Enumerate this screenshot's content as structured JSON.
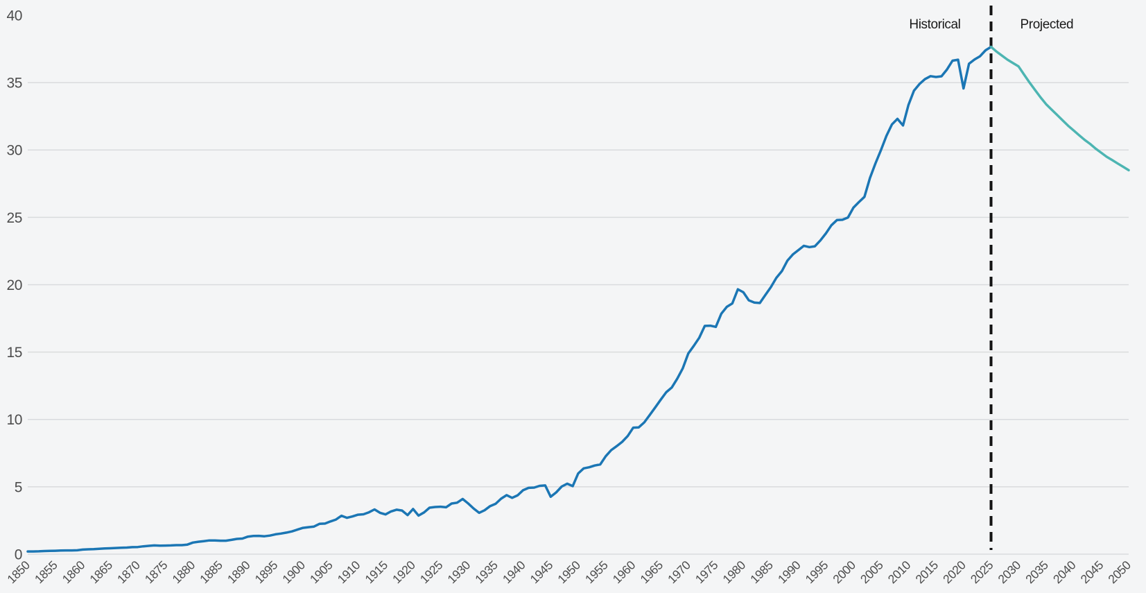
{
  "chart_data": {
    "type": "line",
    "title": "",
    "xlabel": "",
    "ylabel": "",
    "x_axis": {
      "range": [
        1850,
        2050
      ],
      "ticks": [
        1850,
        1855,
        1860,
        1865,
        1870,
        1875,
        1880,
        1885,
        1890,
        1895,
        1900,
        1905,
        1910,
        1915,
        1920,
        1925,
        1930,
        1935,
        1940,
        1945,
        1950,
        1955,
        1960,
        1965,
        1970,
        1975,
        1980,
        1985,
        1990,
        1995,
        2000,
        2005,
        2010,
        2015,
        2020,
        2025,
        2030,
        2035,
        2040,
        2045,
        2050
      ],
      "tick_rotation_deg": -45
    },
    "y_axis": {
      "range": [
        0,
        40
      ],
      "ticks": [
        0,
        5,
        10,
        15,
        20,
        25,
        30,
        35,
        40
      ],
      "gridline_max": 35,
      "grid": true
    },
    "series": [
      {
        "name": "Historical",
        "color": "#1b76b4",
        "x_start": 1850,
        "x_step": 1,
        "values": [
          0.2,
          0.2,
          0.21,
          0.23,
          0.24,
          0.25,
          0.27,
          0.28,
          0.28,
          0.29,
          0.34,
          0.36,
          0.37,
          0.4,
          0.42,
          0.44,
          0.46,
          0.48,
          0.49,
          0.52,
          0.53,
          0.58,
          0.62,
          0.65,
          0.63,
          0.64,
          0.65,
          0.67,
          0.67,
          0.71,
          0.86,
          0.92,
          0.97,
          1.02,
          1.02,
          1.0,
          1.0,
          1.06,
          1.13,
          1.16,
          1.3,
          1.35,
          1.36,
          1.33,
          1.38,
          1.47,
          1.53,
          1.6,
          1.69,
          1.82,
          1.95,
          2.0,
          2.05,
          2.25,
          2.27,
          2.43,
          2.57,
          2.85,
          2.7,
          2.8,
          2.93,
          2.96,
          3.11,
          3.32,
          3.07,
          2.95,
          3.17,
          3.3,
          3.24,
          2.9,
          3.35,
          2.86,
          3.1,
          3.45,
          3.5,
          3.52,
          3.48,
          3.76,
          3.82,
          4.1,
          3.77,
          3.39,
          3.07,
          3.26,
          3.57,
          3.74,
          4.12,
          4.38,
          4.18,
          4.37,
          4.75,
          4.92,
          4.94,
          5.07,
          5.1,
          4.26,
          4.58,
          5.02,
          5.23,
          5.05,
          5.99,
          6.37,
          6.45,
          6.58,
          6.66,
          7.27,
          7.72,
          8.02,
          8.34,
          8.77,
          9.39,
          9.41,
          9.78,
          10.33,
          10.9,
          11.47,
          12.02,
          12.37,
          13.03,
          13.8,
          14.9,
          15.46,
          16.07,
          16.94,
          16.96,
          16.87,
          17.85,
          18.36,
          18.61,
          19.66,
          19.44,
          18.84,
          18.67,
          18.64,
          19.24,
          19.82,
          20.51,
          21.01,
          21.78,
          22.25,
          22.57,
          22.89,
          22.79,
          22.85,
          23.29,
          23.81,
          24.41,
          24.8,
          24.82,
          24.99,
          25.72,
          26.13,
          26.52,
          27.92,
          29.01,
          29.99,
          31.05,
          31.9,
          32.31,
          31.82,
          33.35,
          34.4,
          34.9,
          35.26,
          35.48,
          35.42,
          35.47,
          35.98,
          36.63,
          36.7,
          34.57,
          36.4,
          36.72,
          36.96,
          37.4,
          37.65
        ]
      },
      {
        "name": "Projected",
        "color": "#4db5b2",
        "x_start": 2025,
        "x_step": 1,
        "values": [
          37.65,
          37.3,
          37.0,
          36.7,
          36.45,
          36.2,
          35.6,
          35.0,
          34.45,
          33.9,
          33.4,
          33.0,
          32.6,
          32.2,
          31.8,
          31.45,
          31.1,
          30.75,
          30.45,
          30.1,
          29.8,
          29.5,
          29.25,
          29.0,
          28.75,
          28.5
        ]
      }
    ],
    "annotations": {
      "divider_year": 2025,
      "divider_style": "dashed",
      "labels": [
        {
          "text": "Historical",
          "side": "left"
        },
        {
          "text": "Projected",
          "side": "right"
        }
      ]
    }
  },
  "colors": {
    "background": "#f4f5f6",
    "gridline": "#d9dbdd",
    "axis_text": "#4d4d4d",
    "divider": "#141414",
    "annotation_text": "#1a1a1a"
  }
}
